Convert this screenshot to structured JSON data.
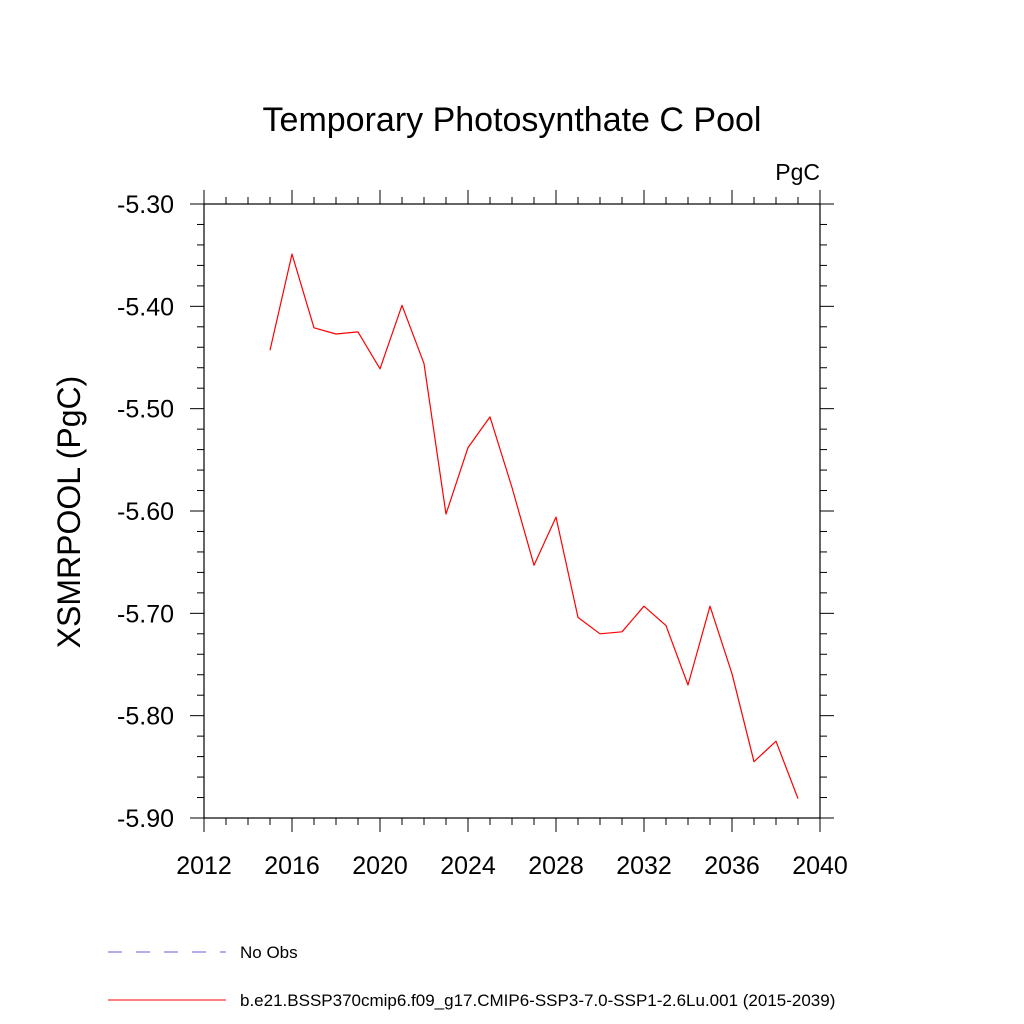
{
  "chart_data": {
    "type": "line",
    "title": "Temporary Photosynthate C Pool",
    "units_label": "PgC",
    "ylabel": "XSMRPOOL  (PgC)",
    "xlabel": "",
    "xlim": [
      2012,
      2040
    ],
    "ylim": [
      -5.9,
      -5.3
    ],
    "x_ticks": [
      2012,
      2016,
      2020,
      2024,
      2028,
      2032,
      2036,
      2040
    ],
    "x_tick_labels": [
      "2012",
      "2016",
      "2020",
      "2024",
      "2028",
      "2032",
      "2036",
      "2040"
    ],
    "y_ticks": [
      -5.3,
      -5.4,
      -5.5,
      -5.6,
      -5.7,
      -5.8,
      -5.9
    ],
    "y_tick_labels": [
      "-5.30",
      "-5.40",
      "-5.50",
      "-5.60",
      "-5.70",
      "-5.80",
      "-5.90"
    ],
    "grid": false,
    "legend_position": "bottom-left",
    "series": [
      {
        "name": "b.e21.BSSP370cmip6.f09_g17.CMIP6-SSP3-7.0-SSP1-2.6Lu.001 (2015-2039)",
        "color": "#ff0000",
        "line_style": "solid",
        "x": [
          2015,
          2016,
          2017,
          2018,
          2019,
          2020,
          2021,
          2022,
          2023,
          2024,
          2025,
          2026,
          2027,
          2028,
          2029,
          2030,
          2031,
          2032,
          2033,
          2034,
          2035,
          2036,
          2037,
          2038,
          2039
        ],
        "y": [
          -5.443,
          -5.349,
          -5.421,
          -5.427,
          -5.425,
          -5.461,
          -5.399,
          -5.456,
          -5.603,
          -5.538,
          -5.508,
          -5.577,
          -5.653,
          -5.606,
          -5.704,
          -5.72,
          -5.718,
          -5.693,
          -5.712,
          -5.77,
          -5.693,
          -5.759,
          -5.845,
          -5.825,
          -5.881
        ]
      }
    ],
    "legend_entries": [
      {
        "label": "No Obs",
        "color": "#6a5acd",
        "line_style": "dashed"
      },
      {
        "label": "b.e21.BSSP370cmip6.f09_g17.CMIP6-SSP3-7.0-SSP1-2.6Lu.001 (2015-2039)",
        "color": "#ff0000",
        "line_style": "solid"
      }
    ]
  }
}
